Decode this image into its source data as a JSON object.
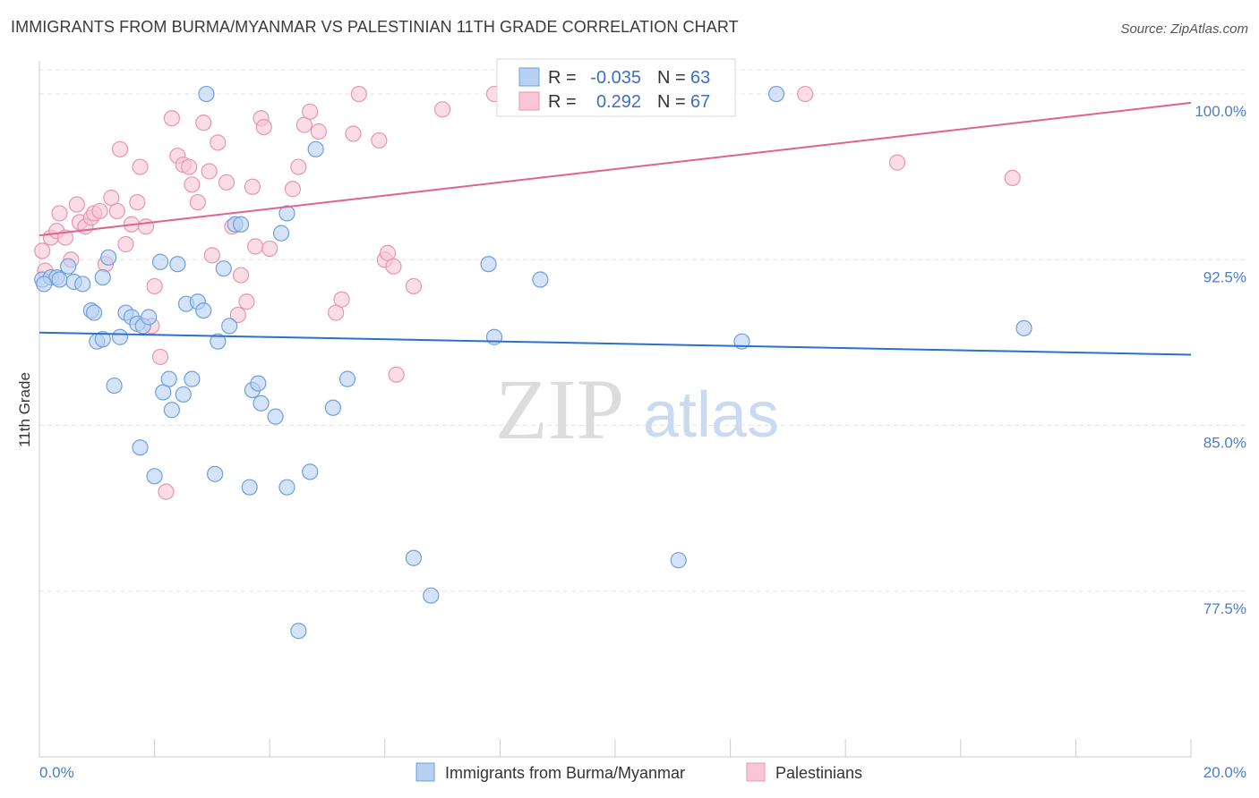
{
  "header": {
    "title": "IMMIGRANTS FROM BURMA/MYANMAR VS PALESTINIAN 11TH GRADE CORRELATION CHART",
    "source": "Source: ZipAtlas.com"
  },
  "watermark": {
    "zip": "ZIP",
    "atlas": "atlas"
  },
  "colors": {
    "blue_fill": "#b8d1f3",
    "blue_stroke": "#6f9fdd",
    "blue_line": "#2b6fcf",
    "pink_fill": "#f8c6d6",
    "pink_stroke": "#ea94b0",
    "pink_line": "#e0628e",
    "grid": "#e3e3e3",
    "axis_label": "#4a7cc9"
  },
  "legend_stats": {
    "r_label": "R =",
    "n_label": "N =",
    "blue": {
      "r": "-0.035",
      "n": "63"
    },
    "pink": {
      "r": "0.292",
      "n": "67"
    }
  },
  "chart_data": {
    "type": "scatter",
    "title": "IMMIGRANTS FROM BURMA/MYANMAR VS PALESTINIAN 11TH GRADE CORRELATION CHART",
    "xlabel": "",
    "ylabel": "11th Grade",
    "xlim": [
      0,
      20
    ],
    "ylim": [
      70,
      101.5
    ],
    "x_tick_labels": [
      "0.0%",
      "20.0%"
    ],
    "y_ticks": [
      77.5,
      85.0,
      92.5,
      100.0
    ],
    "y_tick_labels": [
      "77.5%",
      "85.0%",
      "92.5%",
      "100.0%"
    ],
    "grid": true,
    "legend_position": "bottom-center",
    "series": [
      {
        "name": "Immigrants from Burma/Myanmar",
        "color": "#b8d1f3",
        "trend": {
          "x": [
            0,
            20
          ],
          "y": [
            89.2,
            88.2
          ]
        },
        "points": [
          [
            0.05,
            91.6
          ],
          [
            0.2,
            91.7
          ],
          [
            0.3,
            91.7
          ],
          [
            0.35,
            91.6
          ],
          [
            0.5,
            92.2
          ],
          [
            0.6,
            91.5
          ],
          [
            0.75,
            91.4
          ],
          [
            0.9,
            90.2
          ],
          [
            0.95,
            90.1
          ],
          [
            1.0,
            88.8
          ],
          [
            1.1,
            88.9
          ],
          [
            1.1,
            91.7
          ],
          [
            1.2,
            92.6
          ],
          [
            1.3,
            86.8
          ],
          [
            1.4,
            89.0
          ],
          [
            1.5,
            90.1
          ],
          [
            1.6,
            89.9
          ],
          [
            1.7,
            89.6
          ],
          [
            1.8,
            89.5
          ],
          [
            1.9,
            89.9
          ],
          [
            1.75,
            84.0
          ],
          [
            2.0,
            82.7
          ],
          [
            2.1,
            92.4
          ],
          [
            2.15,
            86.5
          ],
          [
            2.25,
            87.1
          ],
          [
            2.3,
            85.7
          ],
          [
            2.4,
            92.3
          ],
          [
            2.5,
            86.4
          ],
          [
            2.55,
            90.5
          ],
          [
            2.65,
            87.1
          ],
          [
            2.75,
            90.6
          ],
          [
            2.85,
            90.2
          ],
          [
            2.9,
            100.0
          ],
          [
            3.05,
            82.8
          ],
          [
            3.1,
            88.8
          ],
          [
            3.2,
            92.1
          ],
          [
            3.3,
            89.5
          ],
          [
            3.4,
            94.1
          ],
          [
            3.5,
            94.1
          ],
          [
            3.65,
            82.2
          ],
          [
            3.7,
            86.6
          ],
          [
            3.8,
            86.9
          ],
          [
            3.85,
            86.0
          ],
          [
            4.1,
            85.4
          ],
          [
            4.2,
            93.7
          ],
          [
            4.3,
            94.6
          ],
          [
            4.3,
            82.2
          ],
          [
            4.5,
            75.7
          ],
          [
            4.7,
            82.9
          ],
          [
            4.8,
            97.5
          ],
          [
            5.1,
            85.8
          ],
          [
            5.35,
            87.1
          ],
          [
            6.5,
            79.0
          ],
          [
            6.8,
            77.3
          ],
          [
            7.8,
            92.3
          ],
          [
            7.9,
            89.0
          ],
          [
            8.7,
            91.6
          ],
          [
            9.5,
            100.0
          ],
          [
            11.1,
            78.9
          ],
          [
            12.2,
            88.8
          ],
          [
            12.8,
            100.0
          ],
          [
            17.1,
            89.4
          ],
          [
            0.08,
            91.4
          ]
        ]
      },
      {
        "name": "Palestinians",
        "color": "#f8c6d6",
        "trend": {
          "x": [
            0,
            20
          ],
          "y": [
            93.6,
            99.6
          ]
        },
        "points": [
          [
            0.05,
            92.9
          ],
          [
            0.1,
            92.0
          ],
          [
            0.2,
            93.5
          ],
          [
            0.3,
            93.8
          ],
          [
            0.35,
            94.6
          ],
          [
            0.45,
            93.5
          ],
          [
            0.55,
            92.5
          ],
          [
            0.65,
            95.0
          ],
          [
            0.7,
            94.2
          ],
          [
            0.8,
            94.0
          ],
          [
            0.9,
            94.4
          ],
          [
            0.95,
            94.6
          ],
          [
            1.05,
            94.7
          ],
          [
            1.15,
            92.3
          ],
          [
            1.25,
            95.3
          ],
          [
            1.35,
            94.7
          ],
          [
            1.4,
            97.5
          ],
          [
            1.5,
            93.2
          ],
          [
            1.6,
            94.1
          ],
          [
            1.7,
            95.1
          ],
          [
            1.75,
            96.7
          ],
          [
            1.85,
            94.0
          ],
          [
            1.95,
            89.5
          ],
          [
            2.0,
            91.3
          ],
          [
            2.1,
            88.1
          ],
          [
            2.2,
            82.0
          ],
          [
            2.3,
            98.9
          ],
          [
            2.4,
            97.2
          ],
          [
            2.5,
            96.8
          ],
          [
            2.6,
            96.7
          ],
          [
            2.65,
            95.9
          ],
          [
            2.75,
            95.1
          ],
          [
            2.85,
            98.7
          ],
          [
            2.95,
            96.5
          ],
          [
            3.0,
            92.7
          ],
          [
            3.1,
            97.8
          ],
          [
            3.25,
            96.0
          ],
          [
            3.35,
            94.0
          ],
          [
            3.45,
            90.0
          ],
          [
            3.5,
            91.8
          ],
          [
            3.6,
            90.6
          ],
          [
            3.7,
            95.8
          ],
          [
            3.75,
            93.1
          ],
          [
            3.85,
            98.9
          ],
          [
            3.9,
            98.5
          ],
          [
            4.0,
            93.0
          ],
          [
            4.4,
            95.7
          ],
          [
            4.5,
            96.7
          ],
          [
            4.6,
            98.6
          ],
          [
            4.7,
            99.2
          ],
          [
            4.85,
            98.3
          ],
          [
            5.15,
            90.1
          ],
          [
            5.25,
            90.7
          ],
          [
            5.45,
            98.2
          ],
          [
            5.55,
            100.0
          ],
          [
            5.9,
            97.9
          ],
          [
            6.0,
            92.5
          ],
          [
            6.05,
            92.8
          ],
          [
            6.15,
            92.2
          ],
          [
            6.2,
            87.3
          ],
          [
            6.5,
            91.3
          ],
          [
            7.0,
            99.3
          ],
          [
            7.9,
            100.0
          ],
          [
            11.8,
            100.0
          ],
          [
            13.3,
            100.0
          ],
          [
            14.9,
            96.9
          ],
          [
            16.9,
            96.2
          ]
        ]
      }
    ]
  }
}
